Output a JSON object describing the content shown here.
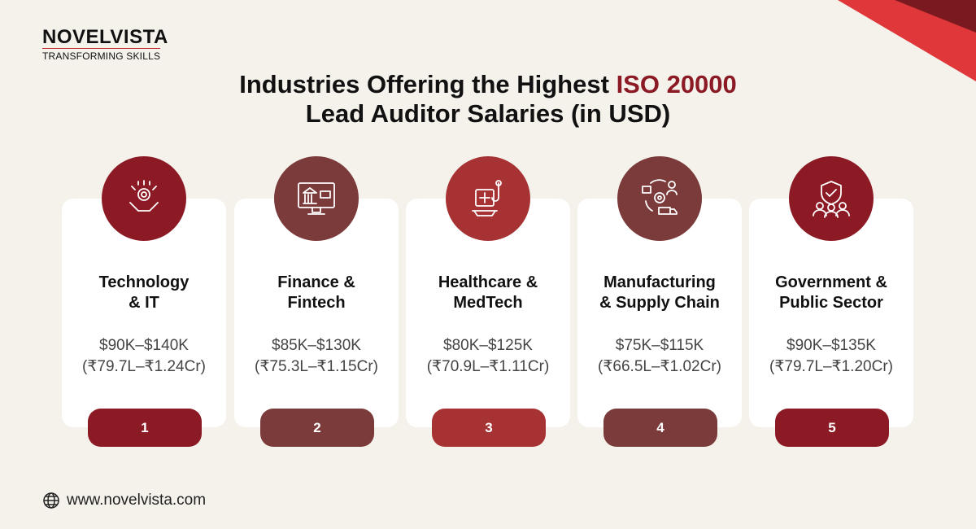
{
  "logo": {
    "name": "NOVELVISTA",
    "tagline": "TRANSFORMING SKILLS"
  },
  "title": {
    "before": "Industries Offering the Highest",
    "highlight": "ISO 20000",
    "after": "Lead Auditor Salaries (in USD)"
  },
  "cards": [
    {
      "name": [
        "Technology",
        "& IT"
      ],
      "usd": "$90K–$140K",
      "inr": "(₹79.7L–₹1.24Cr)",
      "rank": 1
    },
    {
      "name": [
        "Finance &",
        "Fintech"
      ],
      "usd": "$85K–$130K",
      "inr": "(₹75.3L–₹1.15Cr)",
      "rank": 2
    },
    {
      "name": [
        "Healthcare &",
        "MedTech"
      ],
      "usd": "$80K–$125K",
      "inr": "(₹70.9L–₹1.11Cr)",
      "rank": 3
    },
    {
      "name": [
        "Manufacturing",
        "& Supply Chain"
      ],
      "usd": "$75K–$115K",
      "inr": "(₹66.5L–₹1.02Cr)",
      "rank": 4
    },
    {
      "name": [
        "Government &",
        "Public Sector"
      ],
      "usd": "$90K–$135K",
      "inr": "(₹79.7L–₹1.20Cr)",
      "rank": 5
    }
  ],
  "footer": {
    "website": "www.novelvista.com"
  }
}
